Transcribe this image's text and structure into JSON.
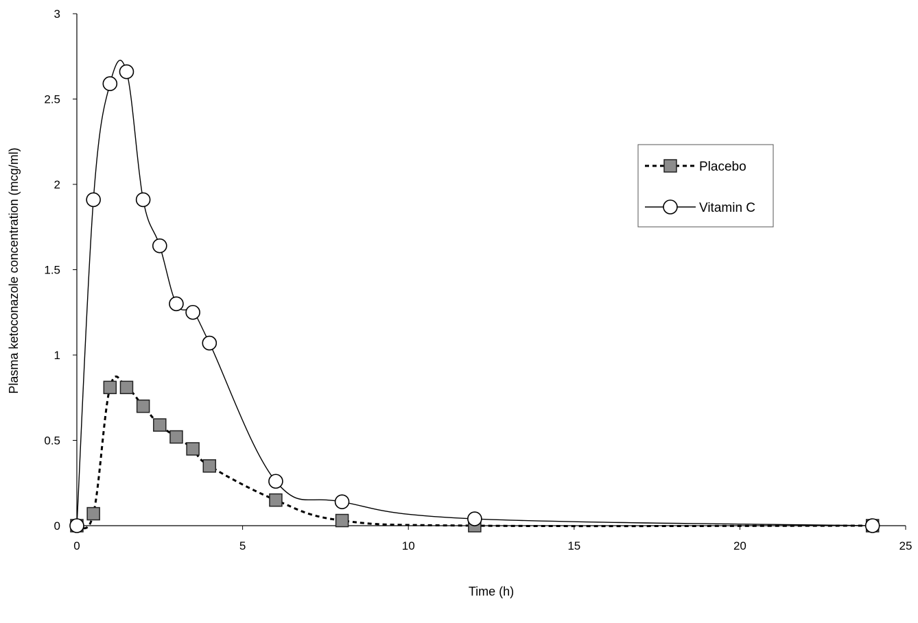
{
  "chart_data": {
    "type": "line",
    "title": "",
    "xlabel": "Time (h)",
    "ylabel": "Plasma ketoconazole concentration (mcg/ml)",
    "xlim": [
      0,
      25
    ],
    "ylim": [
      0,
      3
    ],
    "x_ticks": [
      "0",
      "5",
      "10",
      "15",
      "20",
      "25"
    ],
    "y_ticks": [
      "0",
      "0.5",
      "1",
      "1.5",
      "2",
      "2.5",
      "3"
    ],
    "grid": false,
    "legend_position": "right",
    "series": [
      {
        "name": "Placebo",
        "line_style": "dashed",
        "marker": "square",
        "color": "#000000",
        "marker_fill": "#8c8c8c",
        "x": [
          0,
          0.5,
          1,
          1.5,
          2,
          2.5,
          3,
          3.5,
          4,
          6,
          8,
          12,
          24
        ],
        "y": [
          0,
          0.07,
          0.81,
          0.81,
          0.7,
          0.59,
          0.52,
          0.45,
          0.35,
          0.15,
          0.03,
          0,
          0
        ]
      },
      {
        "name": "Vitamin C",
        "line_style": "solid",
        "marker": "circle",
        "color": "#000000",
        "marker_fill": "#ffffff",
        "x": [
          0,
          0.5,
          1,
          1.5,
          2,
          2.5,
          3,
          3.5,
          4,
          6,
          8,
          12,
          24
        ],
        "y": [
          0,
          1.91,
          2.59,
          2.66,
          1.91,
          1.64,
          1.3,
          1.25,
          1.07,
          0.26,
          0.14,
          0.04,
          0
        ]
      }
    ]
  }
}
